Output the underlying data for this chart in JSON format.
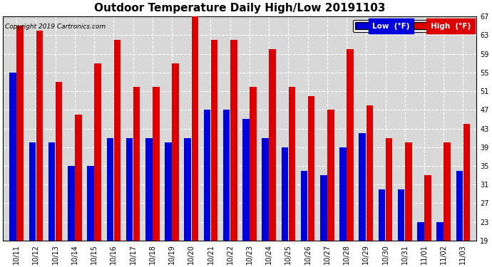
{
  "title": "Outdoor Temperature Daily High/Low 20191103",
  "copyright": "Copyright 2019 Cartronics.com",
  "legend_low": "Low  (°F)",
  "legend_high": "High  (°F)",
  "low_color": "#0000dd",
  "high_color": "#dd0000",
  "bg_color": "#ffffff",
  "plot_bg_color": "#d8d8d8",
  "grid_color": "#ffffff",
  "ylim": [
    19.0,
    67.0
  ],
  "yticks": [
    19.0,
    23.0,
    27.0,
    31.0,
    35.0,
    39.0,
    43.0,
    47.0,
    51.0,
    55.0,
    59.0,
    63.0,
    67.0
  ],
  "dates": [
    "10/11",
    "10/12",
    "10/13",
    "10/14",
    "10/15",
    "10/16",
    "10/17",
    "10/18",
    "10/19",
    "10/20",
    "10/21",
    "10/22",
    "10/23",
    "10/24",
    "10/25",
    "10/26",
    "10/27",
    "10/28",
    "10/29",
    "10/30",
    "10/31",
    "11/01",
    "11/02",
    "11/03"
  ],
  "lows": [
    55,
    40,
    40,
    35,
    35,
    41,
    41,
    41,
    40,
    41,
    47,
    47,
    45,
    41,
    39,
    34,
    33,
    39,
    42,
    30,
    30,
    23,
    23,
    34
  ],
  "highs": [
    65,
    64,
    53,
    46,
    57,
    62,
    52,
    52,
    57,
    67,
    62,
    62,
    52,
    60,
    52,
    50,
    47,
    60,
    48,
    41,
    40,
    33,
    40,
    44
  ],
  "bar_width": 0.35,
  "figwidth": 6.9,
  "figheight": 3.75,
  "title_fontsize": 11,
  "tick_fontsize": 7,
  "copyright_fontsize": 6.5
}
